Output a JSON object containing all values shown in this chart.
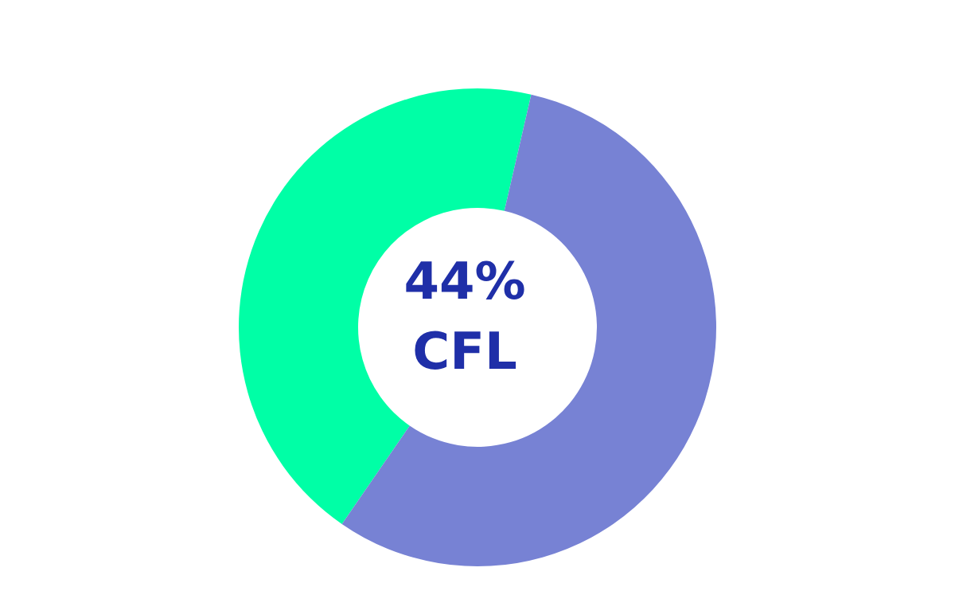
{
  "chart_data": {
    "type": "donut",
    "categories": [
      "CFL",
      null
    ],
    "values": [
      44,
      56
    ],
    "colors": [
      "#00ffa6",
      "#7782d4"
    ],
    "value_labels": [
      "44%",
      null
    ],
    "legend": false
  }
}
